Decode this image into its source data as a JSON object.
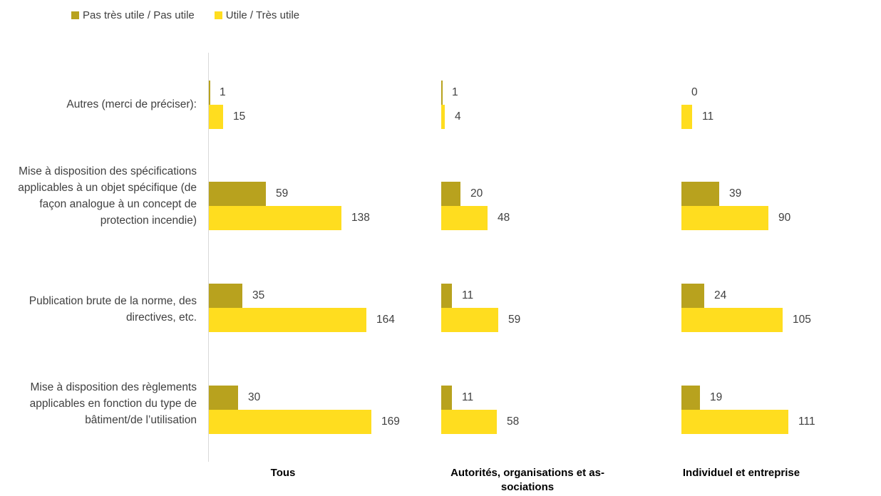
{
  "legend": {
    "items": [
      {
        "label": "Pas très utile / Pas utile",
        "color": "#b8a21e"
      },
      {
        "label": "Utile / Très utile",
        "color": "#ffdd1f"
      }
    ]
  },
  "chart_data": {
    "type": "bar",
    "orientation": "horizontal",
    "categories": [
      "Autres (merci de préciser):",
      "Mise à disposition des spécifications applicables à un objet spécifique (de façon analogue à un concept de protection incendie)",
      "Publication brute de la norme, des directives, etc.",
      "Mise à disposition des règlements applicables en fonction du type de bâtiment/de l’utilisation"
    ],
    "panels": [
      {
        "title": "Tous",
        "series": [
          {
            "name": "Pas très utile / Pas utile",
            "values": [
              1,
              59,
              35,
              30
            ]
          },
          {
            "name": "Utile / Très utile",
            "values": [
              15,
              138,
              164,
              169
            ]
          }
        ]
      },
      {
        "title": "Autorités, organisations et as-sociations",
        "series": [
          {
            "name": "Pas très utile / Pas utile",
            "values": [
              1,
              20,
              11,
              11
            ]
          },
          {
            "name": "Utile / Très utile",
            "values": [
              4,
              48,
              59,
              58
            ]
          }
        ]
      },
      {
        "title": "Individuel et entreprise",
        "series": [
          {
            "name": "Pas très utile / Pas utile",
            "values": [
              0,
              39,
              24,
              19
            ]
          },
          {
            "name": "Utile / Très utile",
            "values": [
              11,
              90,
              105,
              111
            ]
          }
        ]
      }
    ],
    "grid": false,
    "legend_position": "top-left"
  }
}
